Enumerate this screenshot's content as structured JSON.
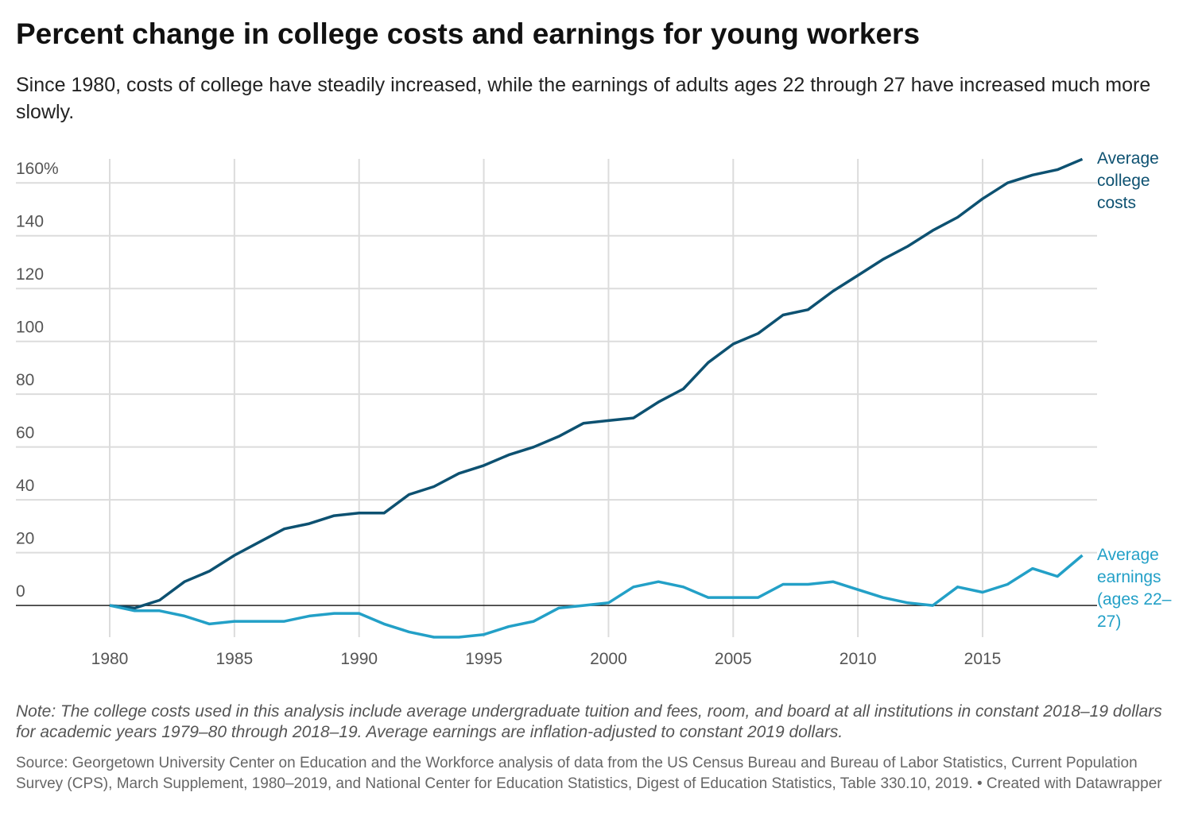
{
  "chart_data": {
    "type": "line",
    "title": "Percent change in college costs and earnings for young workers",
    "subtitle": "Since 1980, costs of college have steadily increased, while the earnings of adults ages 22 through 27 have increased much more slowly.",
    "note": "Note: The college costs used in this analysis include average undergraduate tuition and fees, room, and board at all institutions in constant 2018–19 dollars for academic years 1979–80 through 2018–19. Average earnings are inflation-adjusted to constant 2019 dollars.",
    "source": "Source: Georgetown University Center on Education and the Workforce analysis of data from the US Census Bureau and Bureau of Labor Statistics, Current Population Survey (CPS), March Supplement, 1980–2019, and National Center for Education Statistics, Digest of Education Statistics, Table 330.10, 2019. • Created with Datawrapper",
    "x": [
      1980,
      1981,
      1982,
      1983,
      1984,
      1985,
      1986,
      1987,
      1988,
      1989,
      1990,
      1991,
      1992,
      1993,
      1994,
      1995,
      1996,
      1997,
      1998,
      1999,
      2000,
      2001,
      2002,
      2003,
      2004,
      2005,
      2006,
      2007,
      2008,
      2009,
      2010,
      2011,
      2012,
      2013,
      2014,
      2015,
      2016,
      2017,
      2018,
      2019
    ],
    "series": [
      {
        "name": "Average college costs",
        "color": "#0d5171",
        "values": [
          0,
          -1,
          2,
          9,
          13,
          19,
          24,
          29,
          31,
          34,
          35,
          35,
          42,
          45,
          50,
          53,
          57,
          60,
          64,
          69,
          70,
          71,
          77,
          82,
          92,
          99,
          103,
          110,
          112,
          119,
          125,
          131,
          136,
          142,
          147,
          154,
          160,
          163,
          165,
          169
        ]
      },
      {
        "name": "Average earnings (ages 22–27)",
        "color": "#23a0c7",
        "values": [
          0,
          -2,
          -2,
          -4,
          -7,
          -6,
          -6,
          -6,
          -4,
          -3,
          -3,
          -7,
          -10,
          -12,
          -12,
          -11,
          -8,
          -6,
          -1,
          0,
          1,
          7,
          9,
          7,
          3,
          3,
          3,
          8,
          8,
          9,
          6,
          3,
          1,
          0,
          7,
          5,
          8,
          14,
          11,
          19
        ]
      }
    ],
    "xlim": [
      1980,
      2019
    ],
    "xticks": [
      1980,
      1985,
      1990,
      1995,
      2000,
      2005,
      2010,
      2015
    ],
    "ylim": [
      -12,
      170
    ],
    "yticks": [
      0,
      20,
      40,
      60,
      80,
      100,
      120,
      {
        "value": 160,
        "label": "160%"
      },
      140
    ],
    "grid": true
  }
}
